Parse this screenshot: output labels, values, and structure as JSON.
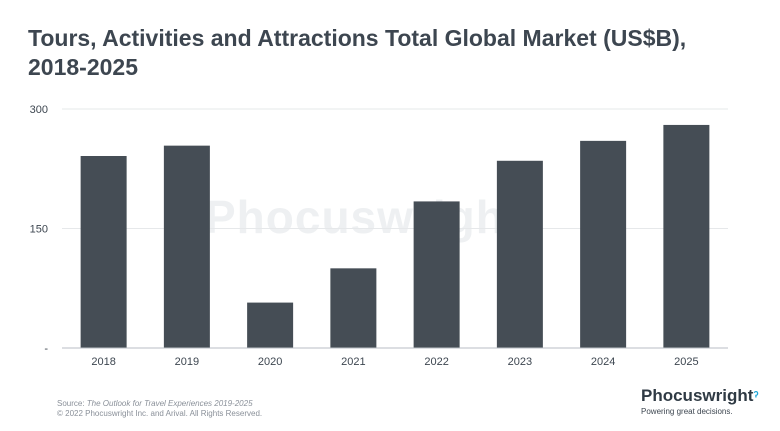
{
  "title": {
    "line1": "Tours, Activities and Attractions Total Global Market (US$B),",
    "line2": "2018-2025"
  },
  "watermark": "Phocuswright",
  "source": {
    "prefix": "Source: ",
    "title": "The Outlook for Travel Experiences 2019-2025",
    "copyright": "© 2022 Phocuswright Inc. and Arival. All Rights Reserved."
  },
  "brand": {
    "name": "Phocuswright",
    "tagline": "Powering great decisions."
  },
  "colors": {
    "bar": "#454d55",
    "text": "#3d4650",
    "grid": "#e6e8ea"
  },
  "chart_data": {
    "type": "bar",
    "categories": [
      "2018",
      "2019",
      "2020",
      "2021",
      "2022",
      "2023",
      "2024",
      "2025"
    ],
    "values": [
      241,
      254,
      57,
      100,
      184,
      235,
      260,
      280
    ],
    "ylim": [
      0,
      300
    ],
    "yticks": [
      {
        "value": 0,
        "label": "-"
      },
      {
        "value": 150,
        "label": "150"
      },
      {
        "value": 300,
        "label": "300"
      }
    ],
    "grid": true
  }
}
